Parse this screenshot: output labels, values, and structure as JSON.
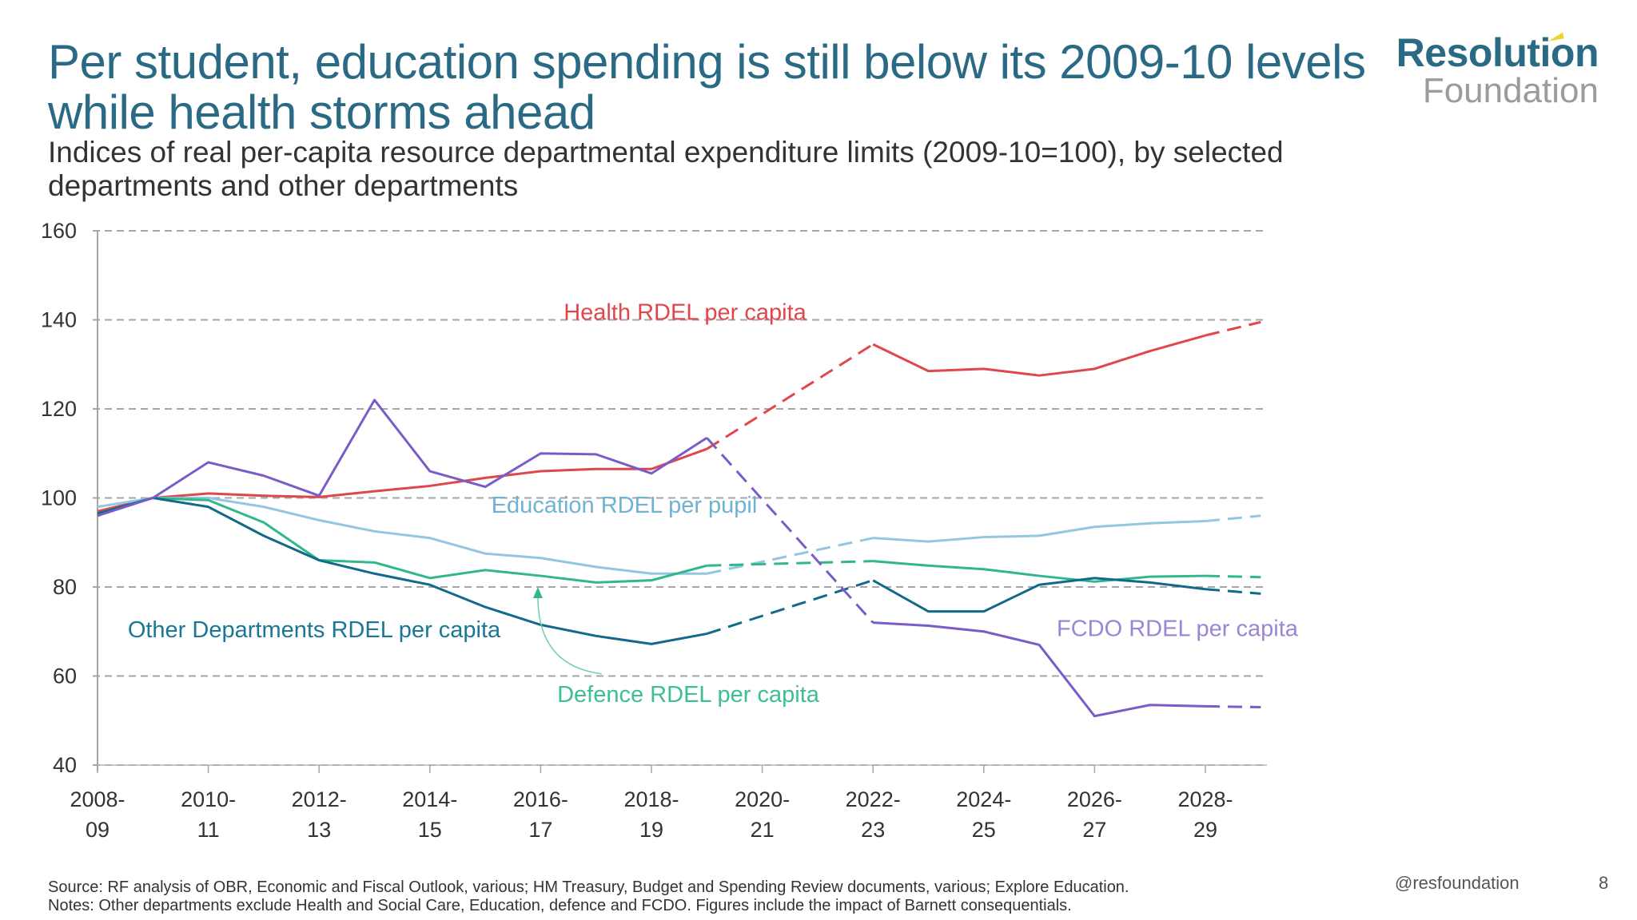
{
  "slide": {
    "title": "Per student, education spending is still below its 2009-10 levels while health storms ahead",
    "subtitle": "Indices of real per-capita resource departmental expenditure limits (2009-10=100), by selected departments and other departments",
    "logo_line1": "Resolution",
    "logo_line2": "Foundation",
    "source": "Source: RF analysis of OBR, Economic and Fiscal Outlook, various; HM Treasury, Budget and Spending Review documents, various; Explore Education.",
    "notes": "Notes: Other departments exclude Health and Social Care, Education, defence and FCDO. Figures include the impact of Barnett consequentials.",
    "handle": "@resfoundation",
    "page_number": "8"
  },
  "chart_data": {
    "type": "line",
    "title": "Per student, education spending is still below its 2009-10 levels while health storms ahead",
    "xlabel": "",
    "ylabel": "",
    "ylim": [
      40,
      160
    ],
    "yticks": [
      40,
      60,
      80,
      100,
      120,
      140,
      160
    ],
    "grid": "horizontal-dashed",
    "x": [
      "2008-09",
      "2009-10",
      "2010-11",
      "2011-12",
      "2012-13",
      "2013-14",
      "2014-15",
      "2015-16",
      "2016-17",
      "2017-18",
      "2018-19",
      "2019-20",
      "2020-21",
      "2021-22",
      "2022-23",
      "2023-24",
      "2024-25",
      "2025-26",
      "2026-27",
      "2027-28",
      "2028-29",
      "2029-30"
    ],
    "xtick_labels": [
      {
        "index": 0,
        "line1": "2008-",
        "line2": "09"
      },
      {
        "index": 2,
        "line1": "2010-",
        "line2": "11"
      },
      {
        "index": 4,
        "line1": "2012-",
        "line2": "13"
      },
      {
        "index": 6,
        "line1": "2014-",
        "line2": "15"
      },
      {
        "index": 8,
        "line1": "2016-",
        "line2": "17"
      },
      {
        "index": 10,
        "line1": "2018-",
        "line2": "19"
      },
      {
        "index": 12,
        "line1": "2020-",
        "line2": "21"
      },
      {
        "index": 14,
        "line1": "2022-",
        "line2": "23"
      },
      {
        "index": 16,
        "line1": "2024-",
        "line2": "25"
      },
      {
        "index": 18,
        "line1": "2026-",
        "line2": "27"
      },
      {
        "index": 20,
        "line1": "2028-",
        "line2": "29"
      }
    ],
    "series": [
      {
        "name": "Health RDEL per capita",
        "color": "#e0474c",
        "values": [
          97,
          100,
          101,
          100.5,
          100.2,
          101.5,
          102.7,
          104.5,
          106,
          106.5,
          106.5,
          111,
          null,
          null,
          134.5,
          128.5,
          129,
          127.5,
          129,
          133,
          136.5,
          139.5
        ],
        "segments": [
          {
            "from": 0,
            "to": 11,
            "style": "solid"
          },
          {
            "from": 11,
            "to": 14,
            "style": "dashed"
          },
          {
            "from": 14,
            "to": 20,
            "style": "solid"
          },
          {
            "from": 20,
            "to": 21,
            "style": "dashed"
          }
        ],
        "label_pos": [
          100,
          141.8
        ]
      },
      {
        "name": "Education RDEL per pupil",
        "color": "#93c6e0",
        "label_color": "#6fb3d2",
        "values": [
          98,
          100,
          100,
          98,
          95,
          92.5,
          91,
          87.5,
          86.5,
          84.5,
          83,
          83,
          null,
          null,
          91,
          90.2,
          91.2,
          91.5,
          93.5,
          94.3,
          94.8,
          96
        ],
        "segments": [
          {
            "from": 0,
            "to": 11,
            "style": "solid"
          },
          {
            "from": 11,
            "to": 14,
            "style": "dashed"
          },
          {
            "from": 14,
            "to": 20,
            "style": "solid"
          },
          {
            "from": 20,
            "to": 21,
            "style": "dashed"
          }
        ],
        "label_pos": [
          5,
          98.5
        ]
      },
      {
        "name": "Defence RDEL per capita",
        "color": "#2fb88a",
        "label_color": "#3dbf92",
        "values": [
          96.5,
          100,
          99.5,
          94.5,
          86,
          85.5,
          82,
          83.8,
          82.5,
          81,
          81.5,
          84.8,
          null,
          null,
          85.8,
          84.8,
          84,
          82.5,
          81.2,
          82.3,
          82.5,
          82.2
        ],
        "segments": [
          {
            "from": 0,
            "to": 11,
            "style": "solid"
          },
          {
            "from": 11,
            "to": 14,
            "style": "dashed"
          },
          {
            "from": 14,
            "to": 20,
            "style": "solid"
          },
          {
            "from": 20,
            "to": 21,
            "style": "dashed"
          }
        ],
        "label_pos": [
          100,
          56
        ]
      },
      {
        "name": "Other Departments RDEL per capita",
        "color": "#116a8a",
        "label_color": "#1a7796",
        "values": [
          96.5,
          100,
          98,
          91.5,
          86,
          83,
          80.5,
          75.5,
          71.5,
          69,
          67.2,
          69.5,
          null,
          null,
          81.5,
          74.5,
          74.5,
          80.5,
          82,
          81,
          79.5,
          78.5
        ],
        "segments": [
          {
            "from": 0,
            "to": 11,
            "style": "solid"
          },
          {
            "from": 11,
            "to": 14,
            "style": "dashed"
          },
          {
            "from": 14,
            "to": 20,
            "style": "solid"
          },
          {
            "from": 20,
            "to": 21,
            "style": "dashed"
          }
        ],
        "label_pos": [
          100,
          70.5
        ]
      },
      {
        "name": "FCDO RDEL per capita",
        "color": "#7a5cc9",
        "label_color": "#9a86d4",
        "values": [
          96,
          100,
          108,
          105,
          100.5,
          122,
          106,
          102.5,
          110,
          109.8,
          105.5,
          113.5,
          null,
          null,
          72,
          71.3,
          70,
          67,
          51,
          53.5,
          53.2,
          53
        ],
        "segments": [
          {
            "from": 0,
            "to": 11,
            "style": "solid"
          },
          {
            "from": 11,
            "to": 14,
            "style": "dashed"
          },
          {
            "from": 14,
            "to": 20,
            "style": "solid"
          },
          {
            "from": 20,
            "to": 21,
            "style": "dashed"
          }
        ],
        "label_pos": [
          100,
          70.8
        ]
      }
    ],
    "annotations": [
      {
        "type": "arrow",
        "target_series": "Defence RDEL per capita",
        "from": [
          9.1,
          60.5
        ],
        "to": [
          7.95,
          80
        ],
        "color": "#6fcfab"
      }
    ]
  }
}
